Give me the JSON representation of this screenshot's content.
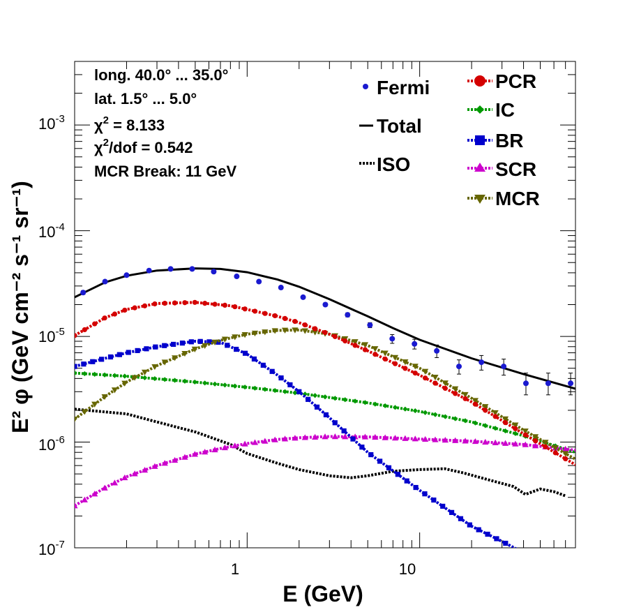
{
  "chart_data": {
    "type": "line",
    "xscale": "log",
    "yscale": "log",
    "xlim": [
      0.1,
      80
    ],
    "ylim": [
      1e-07,
      0.004
    ],
    "xlabel": "E (GeV)",
    "ylabel": "E² φ (GeV cm⁻² s⁻¹ sr⁻¹)",
    "x_tick_labels": [
      "1",
      "10"
    ],
    "x_tick_values": [
      1,
      10
    ],
    "y_tick_labels": [
      "10",
      "-7",
      "10",
      "-6",
      "10",
      "-5",
      "10",
      "-4",
      "10",
      "-3"
    ],
    "y_tick_values": [
      1e-07,
      1e-06,
      1e-05,
      0.0001,
      0.001
    ],
    "y_tick_exponents": [
      "-7",
      "-6",
      "-5",
      "-4",
      "-3"
    ],
    "info": {
      "line1": "long. 40.0° ... 35.0°",
      "line2": "lat. 1.5° ... 5.0°",
      "line3_prefix": "χ",
      "line3_sup": "2",
      "line3_rest": " = 8.133",
      "line4_prefix": "χ",
      "line4_sup": "2",
      "line4_rest": "/dof = 0.542",
      "line5": "MCR Break: 11 GeV"
    },
    "legend": {
      "fermi": "Fermi",
      "total": "Total",
      "iso": "ISO",
      "pcr": "PCR",
      "ic": "IC",
      "br": "BR",
      "scr": "SCR",
      "mcr": "MCR"
    },
    "colors": {
      "fermi": "#1a1ad0",
      "total": "#000000",
      "iso": "#000000",
      "pcr": "#d40000",
      "ic": "#009900",
      "br": "#0000cc",
      "scr": "#cc00cc",
      "mcr": "#666600"
    },
    "series": [
      {
        "name": "Fermi",
        "type": "points",
        "x": [
          0.112,
          0.15,
          0.2,
          0.27,
          0.36,
          0.48,
          0.64,
          0.87,
          1.17,
          1.57,
          2.11,
          2.84,
          3.82,
          5.15,
          6.93,
          9.33,
          12.56,
          16.9,
          22.8,
          30.7,
          41.3,
          55.6,
          75.0
        ],
        "y": [
          2.6e-05,
          3.3e-05,
          3.8e-05,
          4.2e-05,
          4.35e-05,
          4.35e-05,
          4.1e-05,
          3.7e-05,
          3.3e-05,
          2.9e-05,
          2.35e-05,
          2e-05,
          1.6e-05,
          1.28e-05,
          9.5e-06,
          8.5e-06,
          7.3e-06,
          5.2e-06,
          5.7e-06,
          5.2e-06,
          3.6e-06,
          3.6e-06,
          3.6e-06
        ],
        "y_err_low": [
          2.5e-05,
          3.2e-05,
          3.7e-05,
          4.1e-05,
          4.25e-05,
          4.25e-05,
          4e-05,
          3.6e-05,
          3.2e-05,
          2.8e-05,
          2.28e-05,
          1.93e-05,
          1.53e-05,
          1.21e-05,
          8.6e-06,
          7.6e-06,
          6.3e-06,
          4.4e-06,
          4.8e-06,
          4.3e-06,
          2.8e-06,
          2.8e-06,
          2.8e-06
        ],
        "y_err_high": [
          2.7e-05,
          3.4e-05,
          3.9e-05,
          4.3e-05,
          4.45e-05,
          4.45e-05,
          4.2e-05,
          3.8e-05,
          3.4e-05,
          3e-05,
          2.42e-05,
          2.07e-05,
          1.67e-05,
          1.35e-05,
          1.04e-05,
          9.4e-06,
          8.3e-06,
          6e-06,
          6.6e-06,
          6.1e-06,
          4.5e-06,
          4.5e-06,
          4.5e-06
        ]
      },
      {
        "name": "Total",
        "type": "line",
        "x": [
          0.1,
          0.15,
          0.2,
          0.3,
          0.5,
          0.7,
          1.0,
          1.5,
          2.0,
          3.0,
          5.0,
          7.0,
          10.0,
          20.0,
          40.0,
          80.0
        ],
        "y": [
          2.35e-05,
          3.25e-05,
          3.75e-05,
          4.2e-05,
          4.4e-05,
          4.35e-05,
          4.05e-05,
          3.45e-05,
          2.95e-05,
          2.25e-05,
          1.55e-05,
          1.2e-05,
          9.3e-06,
          6.2e-06,
          4.4e-06,
          3.2e-06
        ]
      },
      {
        "name": "ISO",
        "type": "line",
        "x": [
          0.1,
          0.2,
          0.3,
          0.5,
          0.8,
          1.0,
          1.5,
          2.0,
          3.0,
          4.0,
          5.0,
          7.0,
          10.0,
          14.0,
          18.0,
          25.0,
          35.0,
          41.0,
          50.0,
          60.0,
          70.0
        ],
        "y": [
          2.05e-06,
          1.85e-06,
          1.55e-06,
          1.25e-06,
          9.5e-07,
          7.8e-07,
          6.3e-07,
          5.5e-07,
          4.8e-07,
          4.6e-07,
          4.8e-07,
          5.3e-07,
          5.5e-07,
          5.6e-07,
          5.1e-07,
          4.4e-07,
          3.8e-07,
          3.2e-07,
          3.6e-07,
          3.4e-07,
          3.1e-07
        ]
      },
      {
        "name": "PCR",
        "type": "line",
        "x": [
          0.1,
          0.15,
          0.2,
          0.3,
          0.5,
          0.8,
          1.0,
          1.5,
          2.0,
          3.0,
          5.0,
          10.0,
          20.0,
          40.0,
          80.0
        ],
        "y": [
          1.02e-05,
          1.5e-05,
          1.8e-05,
          2.05e-05,
          2.1e-05,
          1.95e-05,
          1.8e-05,
          1.55e-05,
          1.35e-05,
          1.05e-05,
          7.3e-06,
          4.3e-06,
          2.4e-06,
          1.2e-06,
          6.1e-07
        ]
      },
      {
        "name": "IC",
        "type": "line",
        "x": [
          0.1,
          0.2,
          0.5,
          1.0,
          2.0,
          5.0,
          10.0,
          20.0,
          40.0,
          80.0
        ],
        "y": [
          4.5e-06,
          4.2e-06,
          3.7e-06,
          3.3e-06,
          2.9e-06,
          2.35e-06,
          1.95e-06,
          1.55e-06,
          1.15e-06,
          8e-07
        ]
      },
      {
        "name": "BR",
        "type": "line",
        "x": [
          0.1,
          0.15,
          0.2,
          0.3,
          0.5,
          0.7,
          1.0,
          1.5,
          2.0,
          3.0,
          5.0,
          10.0,
          20.0,
          30.0,
          40.0
        ],
        "y": [
          5.2e-06,
          6.2e-06,
          7e-06,
          8e-06,
          9e-06,
          8.8e-06,
          6.8e-06,
          4.3e-06,
          3e-06,
          1.7e-06,
          8e-07,
          3.5e-07,
          1.6e-07,
          1.15e-07,
          9e-08
        ]
      },
      {
        "name": "SCR",
        "type": "line",
        "x": [
          0.1,
          0.15,
          0.2,
          0.3,
          0.5,
          0.7,
          1.0,
          1.5,
          2.0,
          3.0,
          5.0,
          10.0,
          20.0,
          40.0,
          80.0
        ],
        "y": [
          2.5e-07,
          3.7e-07,
          4.7e-07,
          6e-07,
          7.7e-07,
          8.7e-07,
          9.7e-07,
          1.06e-06,
          1.1e-06,
          1.13e-06,
          1.12e-06,
          1.07e-06,
          1.02e-06,
          9.5e-07,
          8.4e-07
        ]
      },
      {
        "name": "MCR",
        "type": "line",
        "x": [
          0.1,
          0.15,
          0.2,
          0.3,
          0.5,
          0.7,
          1.0,
          1.5,
          2.0,
          3.0,
          5.0,
          10.0,
          20.0,
          40.0,
          80.0
        ],
        "y": [
          1.65e-06,
          2.7e-06,
          3.7e-06,
          5.3e-06,
          7.6e-06,
          9.2e-06,
          1.05e-05,
          1.14e-05,
          1.15e-05,
          1.05e-05,
          8.2e-06,
          5e-06,
          2.6e-06,
          1.3e-06,
          6.9e-07
        ]
      }
    ]
  }
}
